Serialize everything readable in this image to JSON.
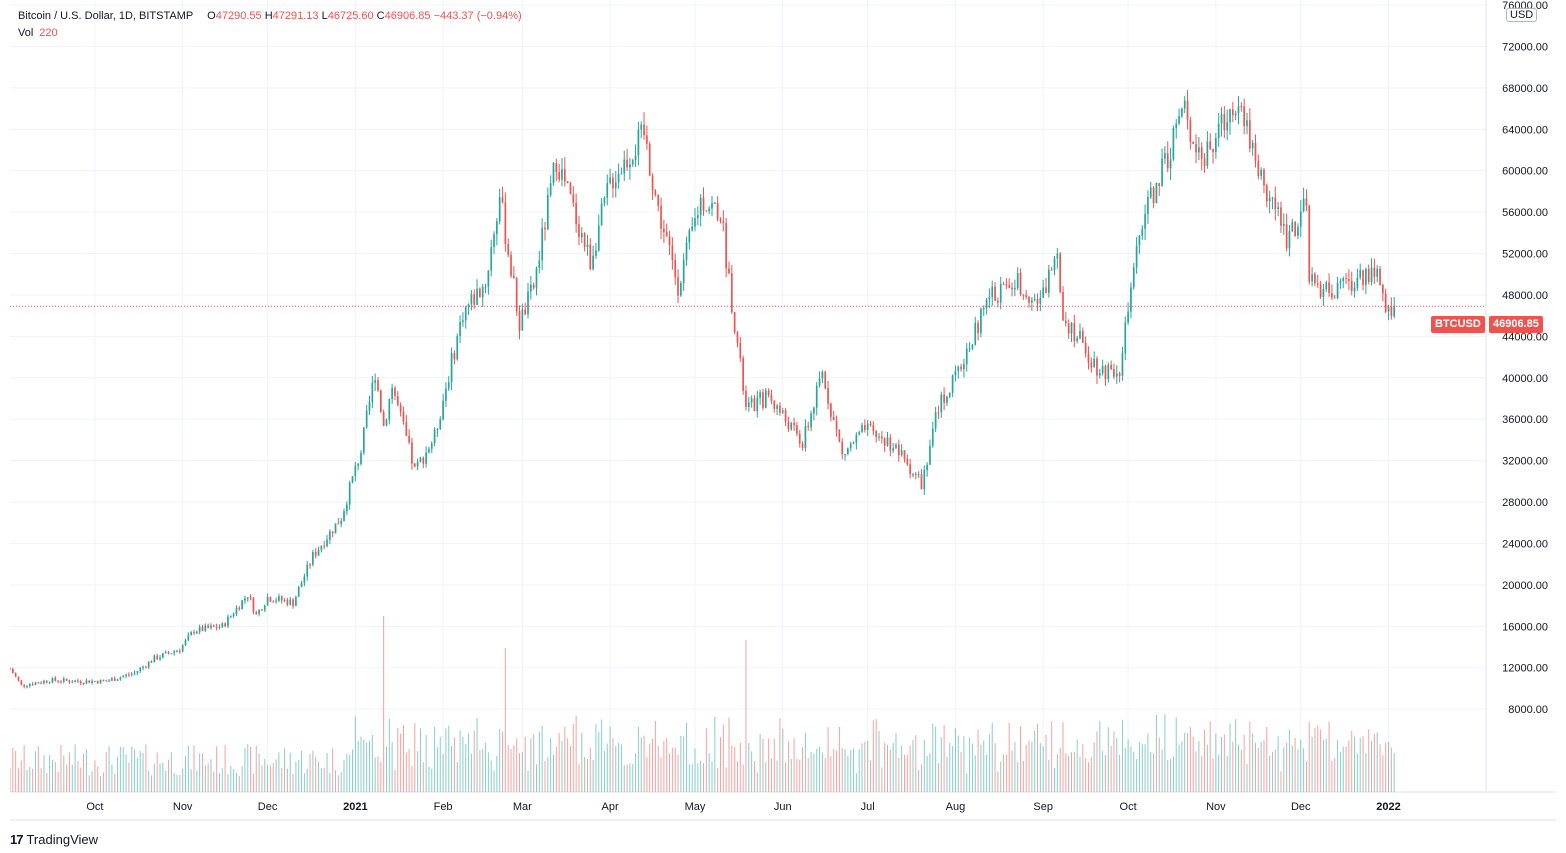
{
  "legend": {
    "symbol": "Bitcoin / U.S. Dollar, 1D, BITSTAMP",
    "open_key": "O",
    "open": "47290.55",
    "high_key": "H",
    "high": "47291.13",
    "low_key": "L",
    "low": "46725.60",
    "close_key": "C",
    "close": "46906.85",
    "change": "−443.37 (−0.94%)",
    "volume_label": "Vol",
    "volume": "220"
  },
  "price_axis": {
    "currency": "USD"
  },
  "last_price": {
    "ticker": "BTCUSD",
    "value": "46906.85"
  },
  "footer": {
    "brand": "TradingView",
    "logo_glyph": "17"
  },
  "colors": {
    "up": "#26a69a",
    "down": "#ef5350",
    "grid": "#f0f3fa",
    "axis_text": "#131722"
  },
  "chart_data": {
    "type": "candlestick",
    "ylim": [
      0,
      76000
    ],
    "y_ticks": [
      8000,
      12000,
      16000,
      20000,
      24000,
      28000,
      32000,
      36000,
      40000,
      44000,
      48000,
      52000,
      56000,
      60000,
      64000,
      68000,
      72000,
      76000
    ],
    "y_tick_labels": [
      "8000.00",
      "12000.00",
      "16000.00",
      "20000.00",
      "24000.00",
      "28000.00",
      "32000.00",
      "36000.00",
      "40000.00",
      "44000.00",
      "48000.00",
      "52000.00",
      "56000.00",
      "60000.00",
      "64000.00",
      "68000.00",
      "72000.00",
      "76000.00"
    ],
    "x_start": "2020-09-01",
    "x_end": "2022-01-10",
    "x_ticks": [
      {
        "date": "2020-10-01",
        "label": "Oct"
      },
      {
        "date": "2020-11-01",
        "label": "Nov"
      },
      {
        "date": "2020-12-01",
        "label": "Dec"
      },
      {
        "date": "2021-01-01",
        "label": "2021"
      },
      {
        "date": "2021-02-01",
        "label": "Feb"
      },
      {
        "date": "2021-03-01",
        "label": "Mar"
      },
      {
        "date": "2021-04-01",
        "label": "Apr"
      },
      {
        "date": "2021-05-01",
        "label": "May"
      },
      {
        "date": "2021-06-01",
        "label": "Jun"
      },
      {
        "date": "2021-07-01",
        "label": "Jul"
      },
      {
        "date": "2021-08-01",
        "label": "Aug"
      },
      {
        "date": "2021-09-01",
        "label": "Sep"
      },
      {
        "date": "2021-10-01",
        "label": "Oct"
      },
      {
        "date": "2021-11-01",
        "label": "Nov"
      },
      {
        "date": "2021-12-01",
        "label": "Dec"
      },
      {
        "date": "2022-01-01",
        "label": "2022"
      }
    ],
    "last_close": 46906.85,
    "close_series": [
      [
        "2020-09-01",
        11900
      ],
      [
        "2020-09-05",
        10300
      ],
      [
        "2020-09-15",
        10800
      ],
      [
        "2020-09-25",
        10700
      ],
      [
        "2020-10-05",
        10700
      ],
      [
        "2020-10-15",
        11500
      ],
      [
        "2020-10-22",
        12900
      ],
      [
        "2020-10-31",
        13800
      ],
      [
        "2020-11-05",
        15600
      ],
      [
        "2020-11-15",
        16000
      ],
      [
        "2020-11-24",
        19100
      ],
      [
        "2020-11-27",
        17100
      ],
      [
        "2020-12-01",
        18800
      ],
      [
        "2020-12-10",
        18300
      ],
      [
        "2020-12-17",
        22800
      ],
      [
        "2020-12-27",
        26500
      ],
      [
        "2021-01-03",
        33000
      ],
      [
        "2021-01-08",
        40600
      ],
      [
        "2021-01-11",
        35400
      ],
      [
        "2021-01-14",
        39200
      ],
      [
        "2021-01-22",
        31000
      ],
      [
        "2021-01-29",
        34300
      ],
      [
        "2021-02-08",
        46300
      ],
      [
        "2021-02-16",
        49200
      ],
      [
        "2021-02-21",
        57500
      ],
      [
        "2021-02-28",
        45200
      ],
      [
        "2021-03-05",
        48800
      ],
      [
        "2021-03-13",
        61200
      ],
      [
        "2021-03-25",
        51300
      ],
      [
        "2021-04-01",
        58900
      ],
      [
        "2021-04-13",
        63500
      ],
      [
        "2021-04-18",
        56200
      ],
      [
        "2021-04-25",
        49000
      ],
      [
        "2021-05-03",
        57200
      ],
      [
        "2021-05-10",
        56000
      ],
      [
        "2021-05-13",
        49500
      ],
      [
        "2021-05-19",
        36900
      ],
      [
        "2021-05-27",
        38300
      ],
      [
        "2021-06-08",
        33600
      ],
      [
        "2021-06-15",
        40400
      ],
      [
        "2021-06-22",
        32500
      ],
      [
        "2021-06-30",
        35000
      ],
      [
        "2021-07-10",
        33500
      ],
      [
        "2021-07-20",
        29800
      ],
      [
        "2021-07-26",
        37300
      ],
      [
        "2021-08-01",
        39900
      ],
      [
        "2021-08-13",
        47800
      ],
      [
        "2021-08-23",
        49300
      ],
      [
        "2021-08-31",
        47100
      ],
      [
        "2021-09-06",
        52700
      ],
      [
        "2021-09-08",
        46100
      ],
      [
        "2021-09-21",
        40700
      ],
      [
        "2021-09-28",
        41000
      ],
      [
        "2021-10-06",
        55300
      ],
      [
        "2021-10-15",
        61500
      ],
      [
        "2021-10-20",
        66000
      ],
      [
        "2021-10-28",
        61000
      ],
      [
        "2021-11-09",
        67500
      ],
      [
        "2021-11-16",
        60000
      ],
      [
        "2021-11-26",
        53700
      ],
      [
        "2021-12-03",
        56500
      ],
      [
        "2021-12-04",
        49100
      ],
      [
        "2021-12-14",
        48300
      ],
      [
        "2021-12-27",
        50700
      ],
      [
        "2021-12-31",
        46200
      ],
      [
        "2022-01-03",
        46906.85
      ]
    ],
    "volume_peaks": [
      [
        "2021-01-11",
        22000
      ],
      [
        "2021-02-23",
        18000
      ],
      [
        "2021-05-19",
        19000
      ],
      [
        "2021-12-04",
        8800
      ]
    ]
  }
}
